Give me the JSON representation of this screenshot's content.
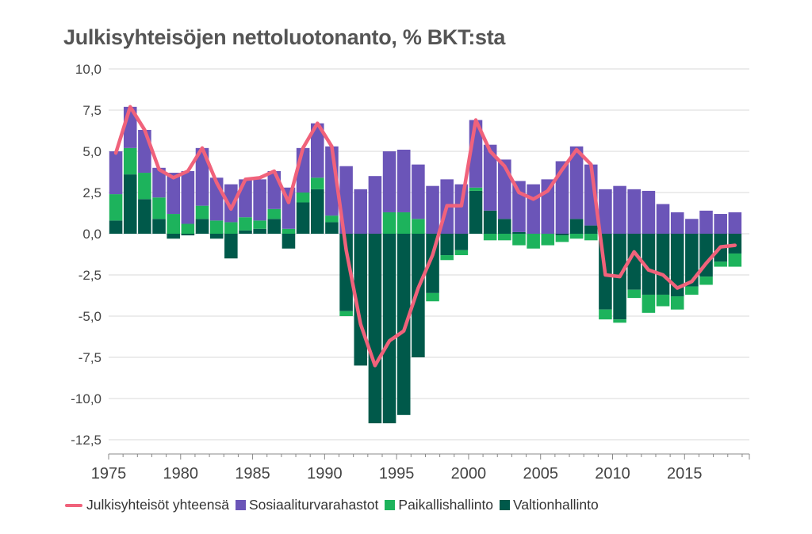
{
  "title": "Julkisyhteisöjen nettoluotonanto, % BKT:sta",
  "colors": {
    "total": "#f0627b",
    "social": "#6b55b8",
    "local": "#1db35c",
    "central": "#00594a",
    "grid": "#d9d9d9",
    "axis": "#888888"
  },
  "legend": {
    "total": "Julkisyhteisöt yhteensä",
    "social": "Sosiaaliturvarahastot",
    "local": "Paikallishallinto",
    "central": "Valtionhallinto"
  },
  "chart_data": {
    "type": "bar",
    "stacked": true,
    "title": "Julkisyhteisöjen nettoluotonanto, % BKT:sta",
    "ylim": [
      -12.5,
      10.0
    ],
    "yticks": [
      "10,0",
      "7,5",
      "5,0",
      "2,5",
      "0,0",
      "-2,5",
      "-5,0",
      "-7,5",
      "-10,0",
      "-12,5"
    ],
    "yticks_values": [
      10,
      7.5,
      5,
      2.5,
      0,
      -2.5,
      -5,
      -7.5,
      -10,
      -12.5
    ],
    "xticks": [
      "1975",
      "1980",
      "1985",
      "1990",
      "1995",
      "2000",
      "2005",
      "2010",
      "2015"
    ],
    "xlim": [
      1975,
      2019.5
    ],
    "grid": "horizontal",
    "legend_position": "bottom",
    "categories": [
      1975,
      1976,
      1977,
      1978,
      1979,
      1980,
      1981,
      1982,
      1983,
      1984,
      1985,
      1986,
      1987,
      1988,
      1989,
      1990,
      1991,
      1992,
      1993,
      1994,
      1995,
      1996,
      1997,
      1998,
      1999,
      2000,
      2001,
      2002,
      2003,
      2004,
      2005,
      2006,
      2007,
      2008,
      2009,
      2010,
      2011,
      2012,
      2013,
      2014,
      2015,
      2016,
      2017,
      2018
    ],
    "series": [
      {
        "name": "Valtionhallinto",
        "key": "central",
        "values": [
          0.8,
          3.6,
          2.1,
          0.9,
          -0.3,
          -0.1,
          0.9,
          -0.3,
          -1.5,
          0.2,
          0.3,
          0.9,
          -0.9,
          1.9,
          2.7,
          0.7,
          -4.7,
          -8.0,
          -11.5,
          -11.5,
          -11.0,
          -7.5,
          -3.6,
          -1.3,
          -1.0,
          2.6,
          1.4,
          0.9,
          0.1,
          0.0,
          0.0,
          -0.1,
          0.9,
          0.5,
          -4.6,
          -5.2,
          -3.4,
          -3.7,
          -3.7,
          -3.8,
          -3.2,
          -2.6,
          -1.7,
          -1.2
        ]
      },
      {
        "name": "Paikallishallinto",
        "key": "local",
        "values": [
          1.6,
          1.6,
          1.6,
          1.3,
          1.2,
          0.6,
          0.8,
          0.8,
          0.7,
          0.8,
          0.5,
          0.6,
          0.3,
          0.6,
          0.7,
          0.4,
          -0.3,
          0.0,
          0.0,
          1.3,
          1.3,
          0.9,
          -0.5,
          -0.3,
          -0.3,
          0.2,
          -0.4,
          -0.4,
          -0.7,
          -0.9,
          -0.7,
          -0.4,
          -0.3,
          -0.4,
          -0.6,
          -0.2,
          -0.5,
          -1.1,
          -0.7,
          -0.8,
          -0.5,
          -0.5,
          -0.3,
          -0.8
        ]
      },
      {
        "name": "Sosiaaliturvarahastot",
        "key": "social",
        "values": [
          2.6,
          2.5,
          2.6,
          1.8,
          2.5,
          3.2,
          3.5,
          2.6,
          2.3,
          2.3,
          2.5,
          2.3,
          2.5,
          2.7,
          3.3,
          4.2,
          4.1,
          2.7,
          3.5,
          3.7,
          3.8,
          3.3,
          2.9,
          3.3,
          3.0,
          4.1,
          4.0,
          3.6,
          3.1,
          3.0,
          3.3,
          4.4,
          4.4,
          3.7,
          2.7,
          2.9,
          2.7,
          2.6,
          1.8,
          1.3,
          0.9,
          1.4,
          1.2,
          1.3
        ]
      },
      {
        "name": "Julkisyhteisöt yhteensä",
        "key": "total",
        "type": "line",
        "x": [
          1975,
          1976,
          1977,
          1978,
          1979,
          1980,
          1981,
          1982,
          1983,
          1984,
          1985,
          1986,
          1987,
          1988,
          1989,
          1990,
          1991,
          1992,
          1993,
          1994,
          1995,
          1996,
          1997,
          1998,
          1999,
          2000,
          2001,
          2002,
          2003,
          2004,
          2005,
          2006,
          2007,
          2008,
          2009,
          2010,
          2011,
          2012,
          2013,
          2014,
          2015,
          2016,
          2017,
          2018
        ],
        "values": [
          4.9,
          7.7,
          6.3,
          3.9,
          3.4,
          3.8,
          5.2,
          3.1,
          1.5,
          3.3,
          3.4,
          3.8,
          1.9,
          5.2,
          6.7,
          5.3,
          -1.0,
          -5.5,
          -8.0,
          -6.5,
          -5.9,
          -3.3,
          -1.3,
          1.7,
          1.7,
          6.9,
          5.0,
          4.1,
          2.5,
          2.1,
          2.6,
          3.9,
          5.1,
          4.2,
          -2.5,
          -2.6,
          -1.1,
          -2.2,
          -2.5,
          -3.3,
          -2.9,
          -1.8,
          -0.8,
          -0.7
        ]
      }
    ]
  }
}
